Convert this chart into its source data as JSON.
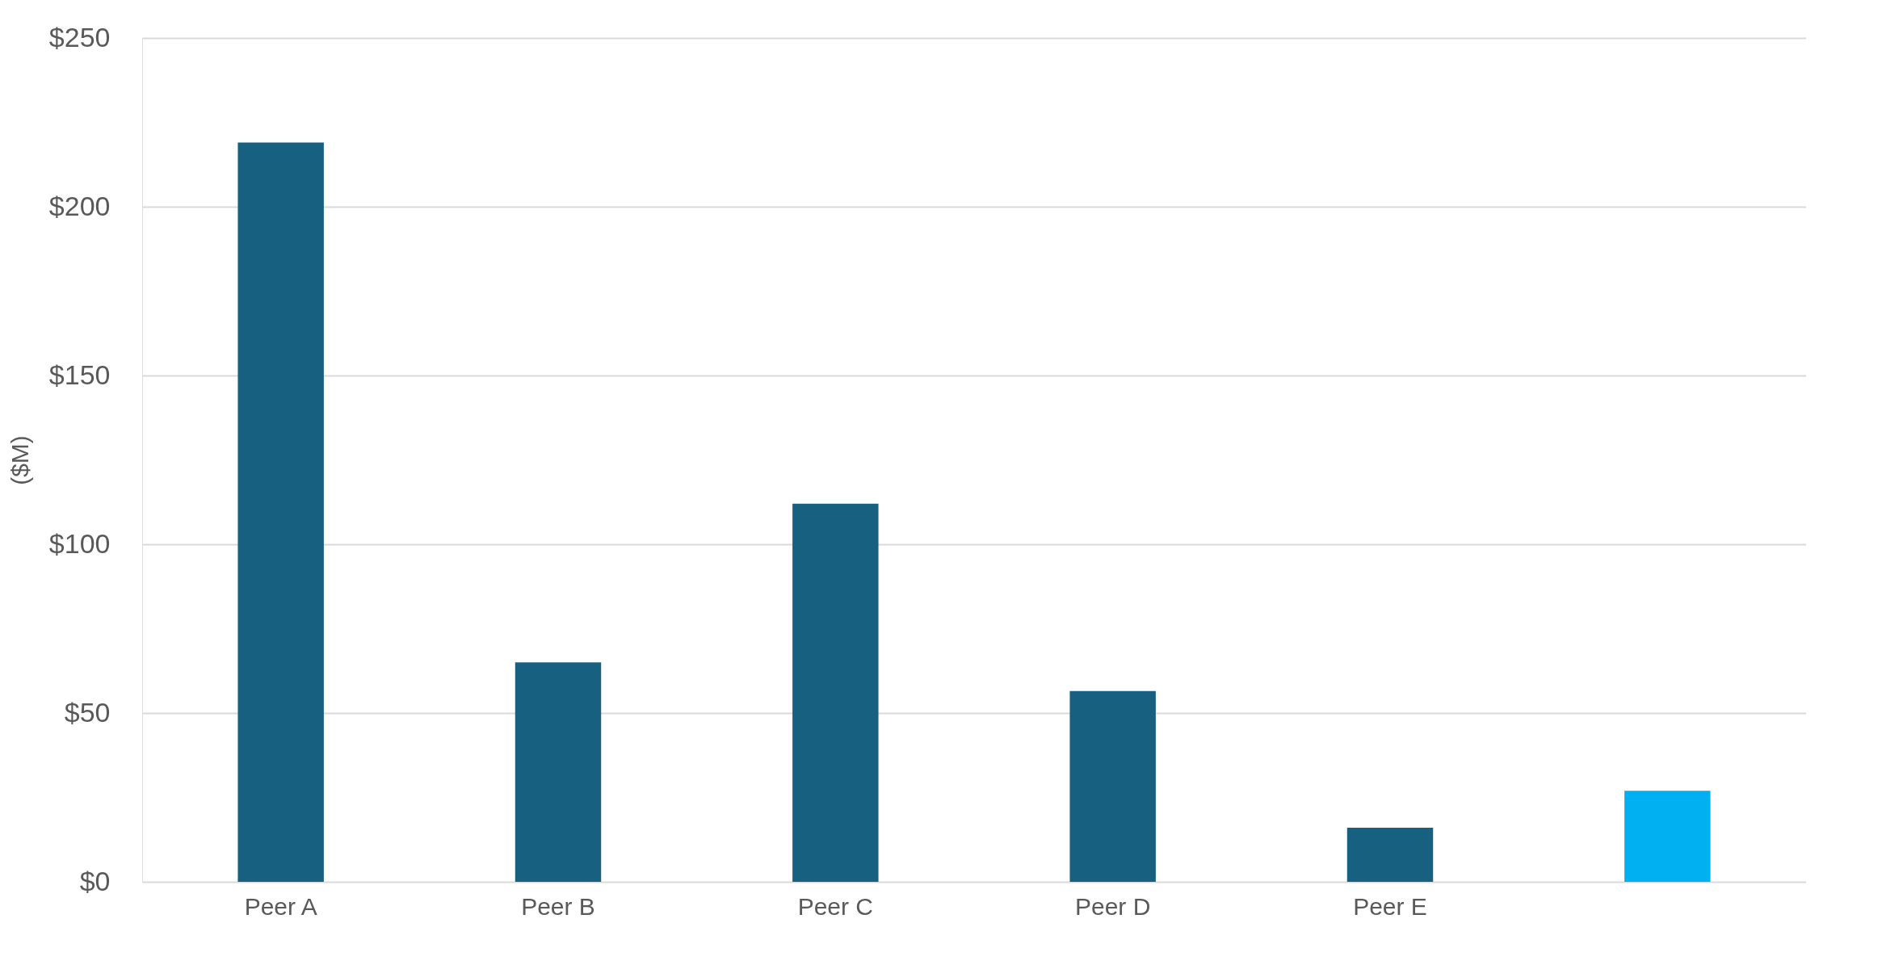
{
  "chart_data": {
    "type": "bar",
    "ylabel": "($M)",
    "categories": [
      "Peer A",
      "Peer B",
      "Peer C",
      "Peer D",
      "Peer E",
      null
    ],
    "values": [
      219,
      65,
      112,
      56.5,
      16,
      27
    ],
    "colors": [
      "#17607f",
      "#17607f",
      "#17607f",
      "#17607f",
      "#17607f",
      "#00b0f0"
    ],
    "ylim": [
      0,
      250
    ],
    "yticks": [
      {
        "value": 0,
        "label": "$0"
      },
      {
        "value": 50,
        "label": "$50"
      },
      {
        "value": 100,
        "label": "$100"
      },
      {
        "value": 150,
        "label": "$150"
      },
      {
        "value": 200,
        "label": "$200"
      },
      {
        "value": 250,
        "label": "$250"
      }
    ],
    "grid": "y",
    "legend": false
  }
}
